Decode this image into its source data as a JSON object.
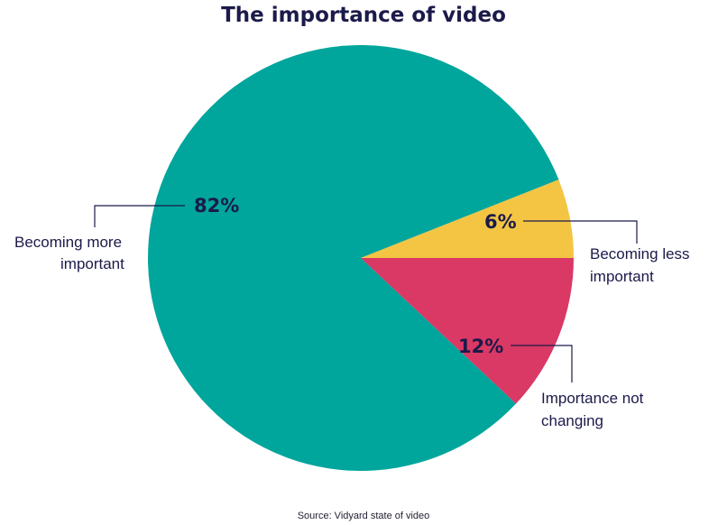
{
  "chart_data": {
    "type": "pie",
    "title": "The importance of video",
    "slices": [
      {
        "label": [
          "Becoming more",
          "important"
        ],
        "value": 82,
        "value_label": "82%",
        "color": "#00a59c"
      },
      {
        "label": [
          "Becoming less",
          "important"
        ],
        "value": 6,
        "value_label": "6%",
        "color": "#f3c543"
      },
      {
        "label": [
          "Importance not",
          "changing"
        ],
        "value": 12,
        "value_label": "12%",
        "color": "#d93964"
      }
    ],
    "source": "Source: Vidyard state of video"
  }
}
